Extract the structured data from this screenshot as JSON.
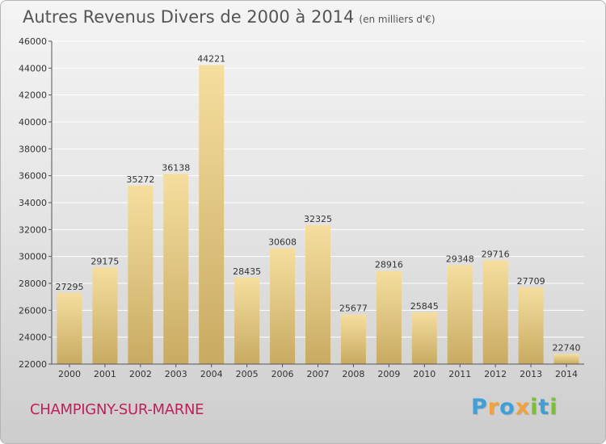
{
  "title": {
    "main": "Autres Revenus Divers de 2000 à 2014",
    "unit": "(en milliers d'€)"
  },
  "location": "CHAMPIGNY-SUR-MARNE",
  "logo": {
    "letters": [
      "P",
      "r",
      "o",
      "x",
      "i",
      "t",
      "i"
    ],
    "colors": [
      "#3fa0d8",
      "#f2a23a",
      "#3fa0d8",
      "#f2a23a",
      "#7cbd3a",
      "#3fa0d8",
      "#7cbd3a"
    ]
  },
  "colors": {
    "bar_top": "#f5de9f",
    "bar_bottom": "#c8ab62",
    "location": "#c0205b",
    "grid": "#ffffff",
    "axis": "#555555"
  },
  "chart_data": {
    "type": "bar",
    "categories": [
      "2000",
      "2001",
      "2002",
      "2003",
      "2004",
      "2005",
      "2006",
      "2007",
      "2008",
      "2009",
      "2010",
      "2011",
      "2012",
      "2013",
      "2014"
    ],
    "values": [
      27295,
      29175,
      35272,
      36138,
      44221,
      28435,
      30608,
      32325,
      25677,
      28916,
      25845,
      29348,
      29716,
      27709,
      22740
    ],
    "ylim": [
      22000,
      46000
    ],
    "yticks": [
      22000,
      24000,
      26000,
      28000,
      30000,
      32000,
      34000,
      36000,
      38000,
      40000,
      42000,
      44000,
      46000
    ],
    "grid": true,
    "legend": false
  }
}
